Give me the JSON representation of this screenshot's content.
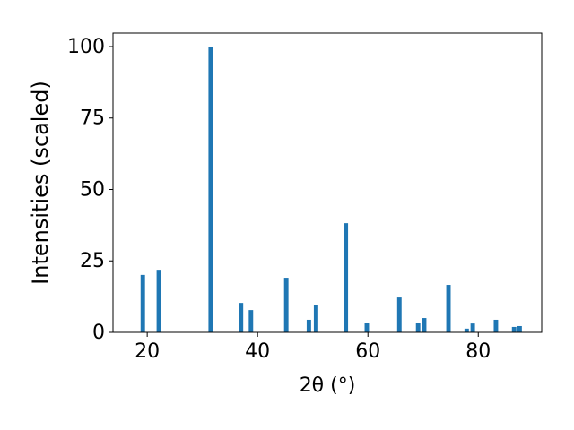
{
  "chart_data": {
    "type": "bar",
    "x_label": "2θ (°)",
    "y_label": "Intensities (scaled)",
    "x": [
      19.2,
      22.1,
      31.5,
      37.0,
      38.8,
      45.2,
      49.3,
      50.6,
      56.0,
      59.8,
      65.7,
      69.1,
      70.2,
      74.6,
      77.9,
      79.0,
      83.2,
      86.5,
      87.5
    ],
    "values": [
      20.1,
      21.9,
      100,
      10.3,
      7.8,
      19.1,
      4.4,
      9.7,
      38.2,
      3.4,
      12.2,
      3.4,
      5.0,
      16.6,
      1.3,
      3.1,
      4.4,
      1.9,
      2.2
    ],
    "color": "#1f77b4",
    "xlim": [
      13.8,
      91.5
    ],
    "xticks": [
      20,
      40,
      60,
      80
    ],
    "ylim": [
      0,
      104.7
    ],
    "yticks": [
      0,
      25,
      50,
      75,
      100
    ],
    "grid": false
  }
}
